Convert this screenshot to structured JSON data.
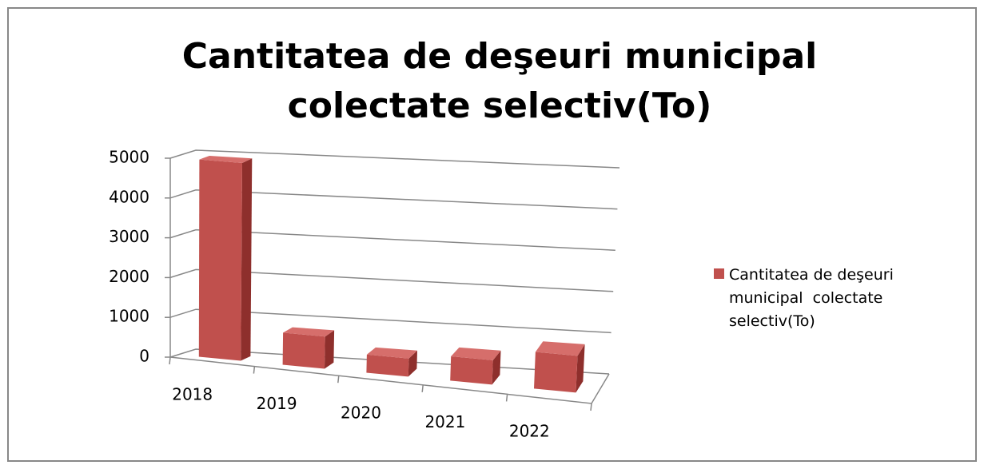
{
  "chart_data": {
    "type": "bar3d",
    "title": "Cantitatea de deşeuri municipal colectate selectiv(To)",
    "categories": [
      "2018",
      "2019",
      "2020",
      "2021",
      "2022"
    ],
    "series": [
      {
        "name": "Cantitatea de deşeuri municipal  colectate selectiv(To)",
        "color": "#c0504d",
        "values": [
          4950,
          800,
          450,
          600,
          900
        ]
      }
    ],
    "ylim": [
      0,
      5000
    ],
    "yticks": [
      0,
      1000,
      2000,
      3000,
      4000,
      5000
    ],
    "grid": true,
    "legend": "right"
  }
}
